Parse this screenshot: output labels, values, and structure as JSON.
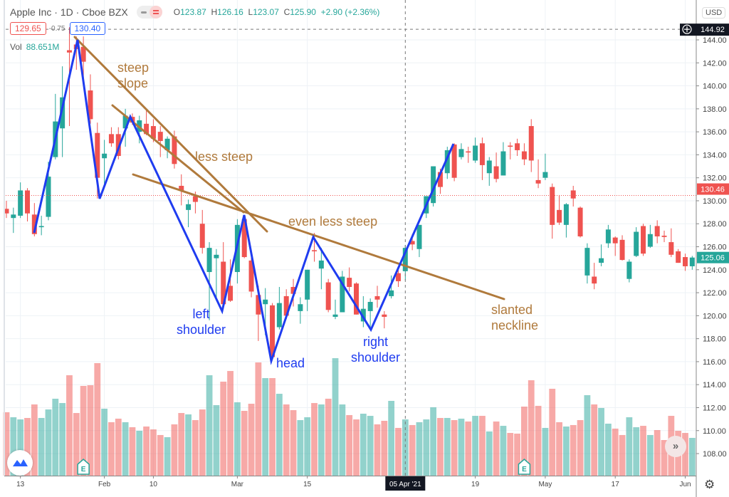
{
  "header": {
    "title": "Apple Inc · 1D · Cboe BZX",
    "ohlc": {
      "o_label": "O",
      "o": "123.87",
      "h_label": "H",
      "h": "126.16",
      "l_label": "L",
      "l": "123.07",
      "c_label": "C",
      "c": "125.90",
      "change": "+2.90 (+2.36%)"
    }
  },
  "price_tags": {
    "left": "129.65",
    "diff": "-0.75",
    "right": "130.40"
  },
  "volume_legend": {
    "label": "Vol",
    "value": "88.651M"
  },
  "axis": {
    "currency": "USD",
    "crosshair_price": "144.92",
    "crosshair_date": "05 Apr '21",
    "last_price": "125.06",
    "reference_price": "130.46"
  },
  "earnings_marker": "E",
  "scroll_button": "»",
  "annotations": {
    "steep_1": "steep",
    "steep_2": "slope",
    "less_steep": "less steep",
    "even_less_steep": "even less steep",
    "neckline_1": "slanted",
    "neckline_2": "neckline",
    "left_shoulder_1": "left",
    "left_shoulder_2": "shoulder",
    "head": "head",
    "right_shoulder_1": "right",
    "right_shoulder_2": "shoulder"
  },
  "colors": {
    "up": "#26a69a",
    "down": "#ef5350",
    "pattern": "#1f3cf0",
    "trendline": "#b07a3c",
    "grid": "#eef2f6"
  },
  "chart_data": {
    "type": "candlestick",
    "title": "",
    "ylim": [
      107,
      146
    ],
    "y_ticks": [
      "144.00",
      "142.00",
      "140.00",
      "138.00",
      "136.00",
      "134.00",
      "132.00",
      "130.00",
      "128.00",
      "126.00",
      "124.00",
      "122.00",
      "120.00",
      "118.00",
      "116.00",
      "114.00",
      "112.00",
      "110.00",
      "108.00"
    ],
    "x_ticks": [
      {
        "label": "13",
        "index": 2
      },
      {
        "label": "Feb",
        "index": 14
      },
      {
        "label": "10",
        "index": 21
      },
      {
        "label": "Mar",
        "index": 33
      },
      {
        "label": "15",
        "index": 43
      },
      {
        "label": "19",
        "index": 67
      },
      {
        "label": "May",
        "index": 77
      },
      {
        "label": "17",
        "index": 87
      },
      {
        "label": "Jun",
        "index": 97
      }
    ],
    "crosshair_index": 57,
    "earnings_indices": [
      11,
      74
    ],
    "grid": true,
    "ohlc": [
      [
        129.3,
        130.0,
        128.5,
        128.9
      ],
      [
        128.5,
        129.4,
        127.2,
        128.8
      ],
      [
        128.7,
        131.6,
        128.5,
        130.9
      ],
      [
        130.9,
        131.1,
        128.2,
        128.9
      ],
      [
        128.8,
        129.8,
        126.9,
        127.1
      ],
      [
        127.7,
        128.7,
        127.0,
        127.8
      ],
      [
        128.6,
        133.4,
        128.3,
        132.1
      ],
      [
        133.8,
        139.3,
        133.6,
        136.9
      ],
      [
        136.3,
        141.7,
        133.8,
        139.0
      ],
      [
        143.1,
        145.1,
        136.5,
        142.9
      ],
      [
        143.6,
        144.3,
        141.4,
        143.2
      ],
      [
        143.4,
        144.3,
        140.4,
        142.1
      ],
      [
        139.6,
        141.0,
        136.7,
        137.1
      ],
      [
        135.9,
        136.8,
        130.2,
        132.0
      ],
      [
        133.7,
        135.3,
        131.2,
        134.1
      ],
      [
        135.8,
        136.4,
        134.7,
        135.0
      ],
      [
        135.8,
        136.4,
        133.6,
        133.9
      ],
      [
        136.3,
        138.0,
        134.7,
        137.4
      ],
      [
        137.3,
        137.6,
        136.6,
        136.8
      ],
      [
        136.0,
        137.4,
        135.0,
        137.0
      ],
      [
        136.7,
        137.9,
        135.7,
        135.8
      ],
      [
        136.5,
        137.1,
        135.1,
        135.4
      ],
      [
        136.0,
        136.5,
        133.8,
        135.2
      ],
      [
        134.4,
        135.6,
        133.7,
        135.4
      ],
      [
        135.6,
        136.1,
        132.8,
        133.2
      ],
      [
        131.3,
        132.3,
        129.6,
        130.9
      ],
      [
        129.2,
        130.1,
        127.7,
        129.7
      ],
      [
        130.4,
        130.8,
        128.9,
        129.9
      ],
      [
        128.0,
        129.2,
        125.4,
        125.9
      ],
      [
        123.8,
        126.4,
        119.6,
        125.9
      ],
      [
        125.0,
        125.8,
        121.3,
        125.3
      ],
      [
        124.7,
        126.4,
        120.8,
        121.0
      ],
      [
        122.6,
        124.9,
        121.2,
        121.3
      ],
      [
        123.8,
        128.4,
        122.8,
        127.9
      ],
      [
        128.4,
        128.7,
        125.0,
        125.1
      ],
      [
        124.8,
        125.7,
        121.6,
        122.1
      ],
      [
        121.8,
        122.6,
        117.8,
        120.1
      ],
      [
        121.0,
        122.4,
        118.3,
        121.4
      ],
      [
        120.9,
        121.1,
        116.2,
        116.4
      ],
      [
        119.0,
        122.5,
        118.8,
        121.1
      ],
      [
        121.7,
        122.3,
        119.7,
        120.0
      ],
      [
        122.5,
        123.2,
        120.8,
        121.9
      ],
      [
        120.4,
        121.6,
        119.3,
        121.0
      ],
      [
        121.4,
        124.0,
        120.4,
        124.0
      ],
      [
        125.7,
        127.2,
        124.7,
        125.6
      ],
      [
        124.1,
        125.9,
        122.3,
        124.8
      ],
      [
        122.9,
        123.2,
        120.3,
        120.5
      ],
      [
        119.9,
        121.4,
        119.7,
        120.1
      ],
      [
        120.3,
        123.9,
        120.3,
        123.4
      ],
      [
        123.3,
        124.2,
        122.1,
        122.5
      ],
      [
        122.8,
        122.9,
        120.1,
        120.1
      ],
      [
        119.5,
        121.7,
        119.0,
        120.6
      ],
      [
        120.4,
        121.5,
        118.9,
        121.2
      ],
      [
        121.7,
        122.6,
        120.7,
        121.4
      ],
      [
        120.1,
        120.4,
        118.9,
        119.9
      ],
      [
        121.7,
        123.5,
        121.5,
        122.2
      ],
      [
        123.7,
        124.2,
        122.5,
        123.0
      ],
      [
        123.87,
        126.16,
        123.07,
        125.9
      ],
      [
        126.5,
        127.1,
        125.7,
        126.2
      ],
      [
        125.8,
        127.9,
        125.1,
        127.9
      ],
      [
        128.9,
        130.4,
        128.5,
        130.4
      ],
      [
        129.8,
        133.0,
        129.5,
        133.0
      ],
      [
        132.5,
        132.8,
        130.6,
        131.2
      ],
      [
        132.4,
        134.7,
        131.9,
        134.4
      ],
      [
        134.9,
        135.0,
        131.7,
        132.0
      ],
      [
        133.8,
        135.0,
        133.6,
        134.5
      ],
      [
        134.3,
        134.7,
        133.3,
        134.2
      ],
      [
        133.5,
        135.5,
        133.3,
        134.8
      ],
      [
        135.0,
        135.5,
        131.8,
        133.1
      ],
      [
        132.4,
        133.8,
        131.3,
        133.5
      ],
      [
        133.0,
        134.2,
        131.6,
        131.9
      ],
      [
        132.2,
        135.1,
        132.2,
        134.3
      ],
      [
        134.8,
        135.1,
        133.6,
        134.7
      ],
      [
        135.0,
        135.4,
        133.9,
        134.4
      ],
      [
        134.3,
        135.0,
        133.1,
        133.6
      ],
      [
        136.5,
        137.1,
        132.5,
        133.5
      ],
      [
        131.8,
        133.6,
        131.1,
        131.5
      ],
      [
        132.0,
        134.1,
        131.8,
        132.5
      ],
      [
        131.2,
        131.5,
        126.7,
        127.9
      ],
      [
        129.2,
        130.5,
        127.9,
        128.1
      ],
      [
        127.9,
        129.8,
        126.8,
        129.7
      ],
      [
        130.9,
        131.3,
        129.5,
        130.2
      ],
      [
        129.4,
        129.5,
        126.8,
        126.9
      ],
      [
        123.5,
        126.3,
        122.8,
        125.9
      ],
      [
        123.4,
        124.6,
        122.3,
        122.8
      ],
      [
        124.6,
        126.2,
        124.3,
        125.0
      ],
      [
        126.3,
        127.9,
        125.9,
        127.5
      ],
      [
        126.8,
        126.9,
        125.2,
        126.3
      ],
      [
        126.6,
        127.0,
        124.8,
        124.85
      ],
      [
        123.2,
        124.9,
        122.9,
        124.7
      ],
      [
        125.2,
        127.7,
        125.1,
        127.3
      ],
      [
        127.8,
        128.0,
        125.2,
        125.4
      ],
      [
        126.0,
        127.9,
        125.9,
        127.1
      ],
      [
        127.8,
        128.3,
        126.3,
        126.9
      ],
      [
        126.96,
        127.4,
        126.4,
        126.85
      ],
      [
        126.4,
        127.6,
        125.1,
        125.3
      ],
      [
        125.6,
        125.8,
        124.6,
        124.6
      ],
      [
        125.1,
        125.4,
        123.9,
        124.3
      ],
      [
        124.3,
        125.2,
        124.0,
        125.06
      ]
    ],
    "volume_millions": [
      99.9,
      92.0,
      88.6,
      90.9,
      112.2,
      90.9,
      104.3,
      121.2,
      114.4,
      158.2,
      98.7,
      141.4,
      142.5,
      177.3,
      105.5,
      84.2,
      89.8,
      84.2,
      76.3,
      70.7,
      77.4,
      72.9,
      64.0,
      60.6,
      80.8,
      98.7,
      96.5,
      87.5,
      104.3,
      158.2,
      111.1,
      148.1,
      164.9,
      115.6,
      102.1,
      113.3,
      178.4,
      153.7,
      153.7,
      129.0,
      112.2,
      103.2,
      87.5,
      92.0,
      114.4,
      112.2,
      121.2,
      185.1,
      112.2,
      95.4,
      88.6,
      97.6,
      94.2,
      80.8,
      86.4,
      117.8,
      75.2,
      88.651,
      79.7,
      84.2,
      88.6,
      107.7,
      90.9,
      90.9,
      87.5,
      89.8,
      85.3,
      94.2,
      94.2,
      69.6,
      85.3,
      78.5,
      67.3,
      66.2,
      108.8,
      150.3,
      110.0,
      75.2,
      136.9,
      84.2,
      77.4,
      79.7,
      87.5,
      126.8,
      112.2,
      106.6,
      81.9,
      74.1,
      64.0,
      92.0,
      76.3,
      78.5,
      64.0,
      71.8,
      56.1,
      94.2,
      70.7,
      67.3,
      59.5
    ]
  }
}
